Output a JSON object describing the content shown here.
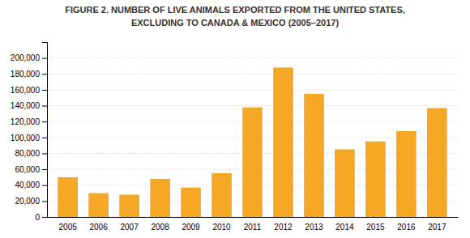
{
  "chart_data": {
    "type": "bar",
    "title": "FIGURE 2. NUMBER OF LIVE ANIMALS EXPORTED FROM THE UNITED STATES,",
    "subtitle": "EXCLUDING TO CANADA & MEXICO (2005–2017)",
    "categories": [
      "2005",
      "2006",
      "2007",
      "2008",
      "2009",
      "2010",
      "2011",
      "2012",
      "2013",
      "2014",
      "2015",
      "2016",
      "2017"
    ],
    "values": [
      50000,
      30000,
      28000,
      48000,
      37000,
      55000,
      138000,
      188000,
      155000,
      85000,
      95000,
      108000,
      137000
    ],
    "color": "#F5A825",
    "ylim": [
      0,
      220000
    ],
    "yticks": [
      0,
      {
        "value": 20000,
        "label": "20,000"
      },
      {
        "value": 40000,
        "label": "40,000"
      },
      {
        "value": 60000,
        "label": "60,000"
      },
      {
        "value": 80000,
        "label": "80,000"
      },
      {
        "value": 100000,
        "label": "100,000"
      },
      {
        "value": 120000,
        "label": "120,000"
      },
      {
        "value": 140000,
        "label": "140,000"
      },
      {
        "value": 160000,
        "label": "160,000"
      },
      {
        "value": 180000,
        "label": "180,000"
      },
      {
        "value": 200000,
        "label": "200,000"
      }
    ],
    "grid": true
  }
}
